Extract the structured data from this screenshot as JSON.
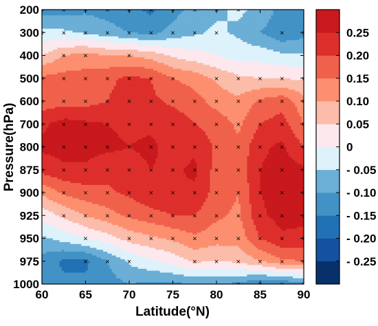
{
  "chart_data": {
    "type": "heatmap",
    "title": "",
    "xlabel": "Latitude(°N)",
    "ylabel": "Pressure(hPa)",
    "xlim": [
      60,
      90
    ],
    "x_ticks": [
      60,
      65,
      70,
      75,
      80,
      85,
      90
    ],
    "x_tick_labels": [
      "60",
      "65",
      "70",
      "75",
      "80",
      "85",
      "90"
    ],
    "y_levels": [
      200,
      300,
      400,
      500,
      600,
      700,
      800,
      875,
      900,
      925,
      950,
      975,
      1000
    ],
    "y_tick_labels": [
      "200",
      "300",
      "400",
      "500",
      "600",
      "700",
      "800",
      "875",
      "900",
      "925",
      "950",
      "975",
      "1000"
    ],
    "y_axis_scale": "categorical pressure levels, equally spaced",
    "x": [
      60,
      62.5,
      65,
      67.5,
      70,
      72.5,
      75,
      77.5,
      80,
      82.5,
      85,
      87.5,
      90
    ],
    "values": [
      [
        -0.12,
        -0.12,
        -0.11,
        -0.12,
        -0.14,
        -0.16,
        -0.12,
        -0.08,
        -0.06,
        -0.04,
        -0.06,
        -0.12,
        -0.12
      ],
      [
        -0.04,
        -0.04,
        -0.06,
        -0.08,
        -0.1,
        -0.12,
        -0.08,
        -0.06,
        -0.04,
        -0.06,
        -0.1,
        -0.14,
        -0.12
      ],
      [
        0.05,
        0.1,
        0.12,
        0.1,
        0.1,
        0.08,
        0.04,
        0.02,
        0.0,
        -0.02,
        -0.02,
        -0.04,
        -0.04
      ],
      [
        0.16,
        0.17,
        0.17,
        0.19,
        0.21,
        0.2,
        0.15,
        0.13,
        0.09,
        0.06,
        0.05,
        0.05,
        0.04
      ],
      [
        0.17,
        0.18,
        0.18,
        0.2,
        0.22,
        0.21,
        0.19,
        0.17,
        0.13,
        0.11,
        0.16,
        0.18,
        0.12
      ],
      [
        0.24,
        0.27,
        0.26,
        0.25,
        0.24,
        0.24,
        0.23,
        0.2,
        0.18,
        0.14,
        0.2,
        0.22,
        0.15
      ],
      [
        0.26,
        0.27,
        0.27,
        0.26,
        0.25,
        0.26,
        0.23,
        0.24,
        0.19,
        0.16,
        0.24,
        0.26,
        0.2
      ],
      [
        0.22,
        0.24,
        0.24,
        0.22,
        0.23,
        0.25,
        0.24,
        0.26,
        0.18,
        0.17,
        0.25,
        0.27,
        0.26
      ],
      [
        0.11,
        0.16,
        0.18,
        0.19,
        0.21,
        0.24,
        0.25,
        0.24,
        0.18,
        0.15,
        0.25,
        0.27,
        0.27
      ],
      [
        0.02,
        0.06,
        0.1,
        0.13,
        0.16,
        0.18,
        0.2,
        0.2,
        0.16,
        0.14,
        0.24,
        0.27,
        0.27
      ],
      [
        -0.06,
        -0.03,
        0.0,
        0.03,
        0.07,
        0.09,
        0.11,
        0.14,
        0.12,
        0.12,
        0.2,
        0.24,
        0.23
      ],
      [
        -0.12,
        -0.16,
        -0.16,
        -0.1,
        -0.04,
        -0.01,
        0.02,
        0.06,
        0.05,
        0.06,
        0.1,
        0.14,
        0.15
      ],
      [
        -0.14,
        -0.14,
        -0.14,
        -0.12,
        -0.1,
        -0.11,
        -0.11,
        -0.1,
        -0.1,
        -0.11,
        -0.15,
        -0.14,
        -0.12
      ]
    ],
    "significance_marker": "×",
    "significant": [
      [
        1,
        1,
        1,
        1,
        1,
        1,
        1,
        1,
        1,
        1,
        0,
        0,
        0
      ],
      [
        1,
        1,
        1,
        1,
        1,
        1,
        1,
        1,
        1,
        0,
        0,
        1,
        1
      ],
      [
        0,
        1,
        1,
        0,
        1,
        0,
        0,
        0,
        0,
        0,
        0,
        0,
        0
      ],
      [
        1,
        1,
        1,
        1,
        1,
        1,
        1,
        0,
        1,
        1,
        1,
        1,
        1
      ],
      [
        1,
        1,
        1,
        1,
        1,
        1,
        1,
        1,
        1,
        1,
        1,
        1,
        1
      ],
      [
        1,
        1,
        1,
        1,
        1,
        1,
        1,
        1,
        1,
        1,
        1,
        1,
        1
      ],
      [
        1,
        1,
        1,
        1,
        1,
        1,
        1,
        1,
        1,
        1,
        1,
        1,
        1
      ],
      [
        1,
        1,
        1,
        1,
        1,
        1,
        1,
        1,
        1,
        1,
        1,
        1,
        1
      ],
      [
        1,
        1,
        1,
        1,
        1,
        1,
        1,
        1,
        1,
        1,
        1,
        1,
        1
      ],
      [
        0,
        1,
        1,
        1,
        1,
        1,
        1,
        1,
        1,
        1,
        1,
        1,
        1
      ],
      [
        0,
        0,
        1,
        0,
        1,
        1,
        1,
        1,
        1,
        1,
        1,
        1,
        1
      ],
      [
        0,
        0,
        1,
        1,
        1,
        0,
        0,
        1,
        1,
        1,
        1,
        1,
        1
      ],
      [
        0,
        0,
        0,
        0,
        0,
        0,
        0,
        0,
        0,
        1,
        1,
        1,
        1
      ]
    ],
    "colorbar": {
      "levels": [
        -0.3,
        -0.25,
        -0.2,
        -0.15,
        -0.1,
        -0.05,
        0,
        0.05,
        0.1,
        0.15,
        0.2,
        0.25,
        0.3
      ],
      "colors": [
        "#08306b",
        "#1252a0",
        "#2171b5",
        "#4292c6",
        "#6baed6",
        "#ddf2fb",
        "#fde8ee",
        "#fbbcaa",
        "#fc8f6f",
        "#f0614b",
        "#dd2f2c",
        "#c8191d"
      ],
      "tick_values": [
        0.25,
        0.2,
        0.15,
        0.1,
        0.05,
        0,
        -0.05,
        -0.1,
        -0.15,
        -0.2,
        -0.25
      ],
      "tick_labels": [
        "0.25",
        "0.20",
        "0.15",
        "0.10",
        "0.05",
        "0",
        "- 0.05",
        "- 0.10",
        "- 0.15",
        "- 0.20",
        "- 0.25"
      ]
    }
  }
}
